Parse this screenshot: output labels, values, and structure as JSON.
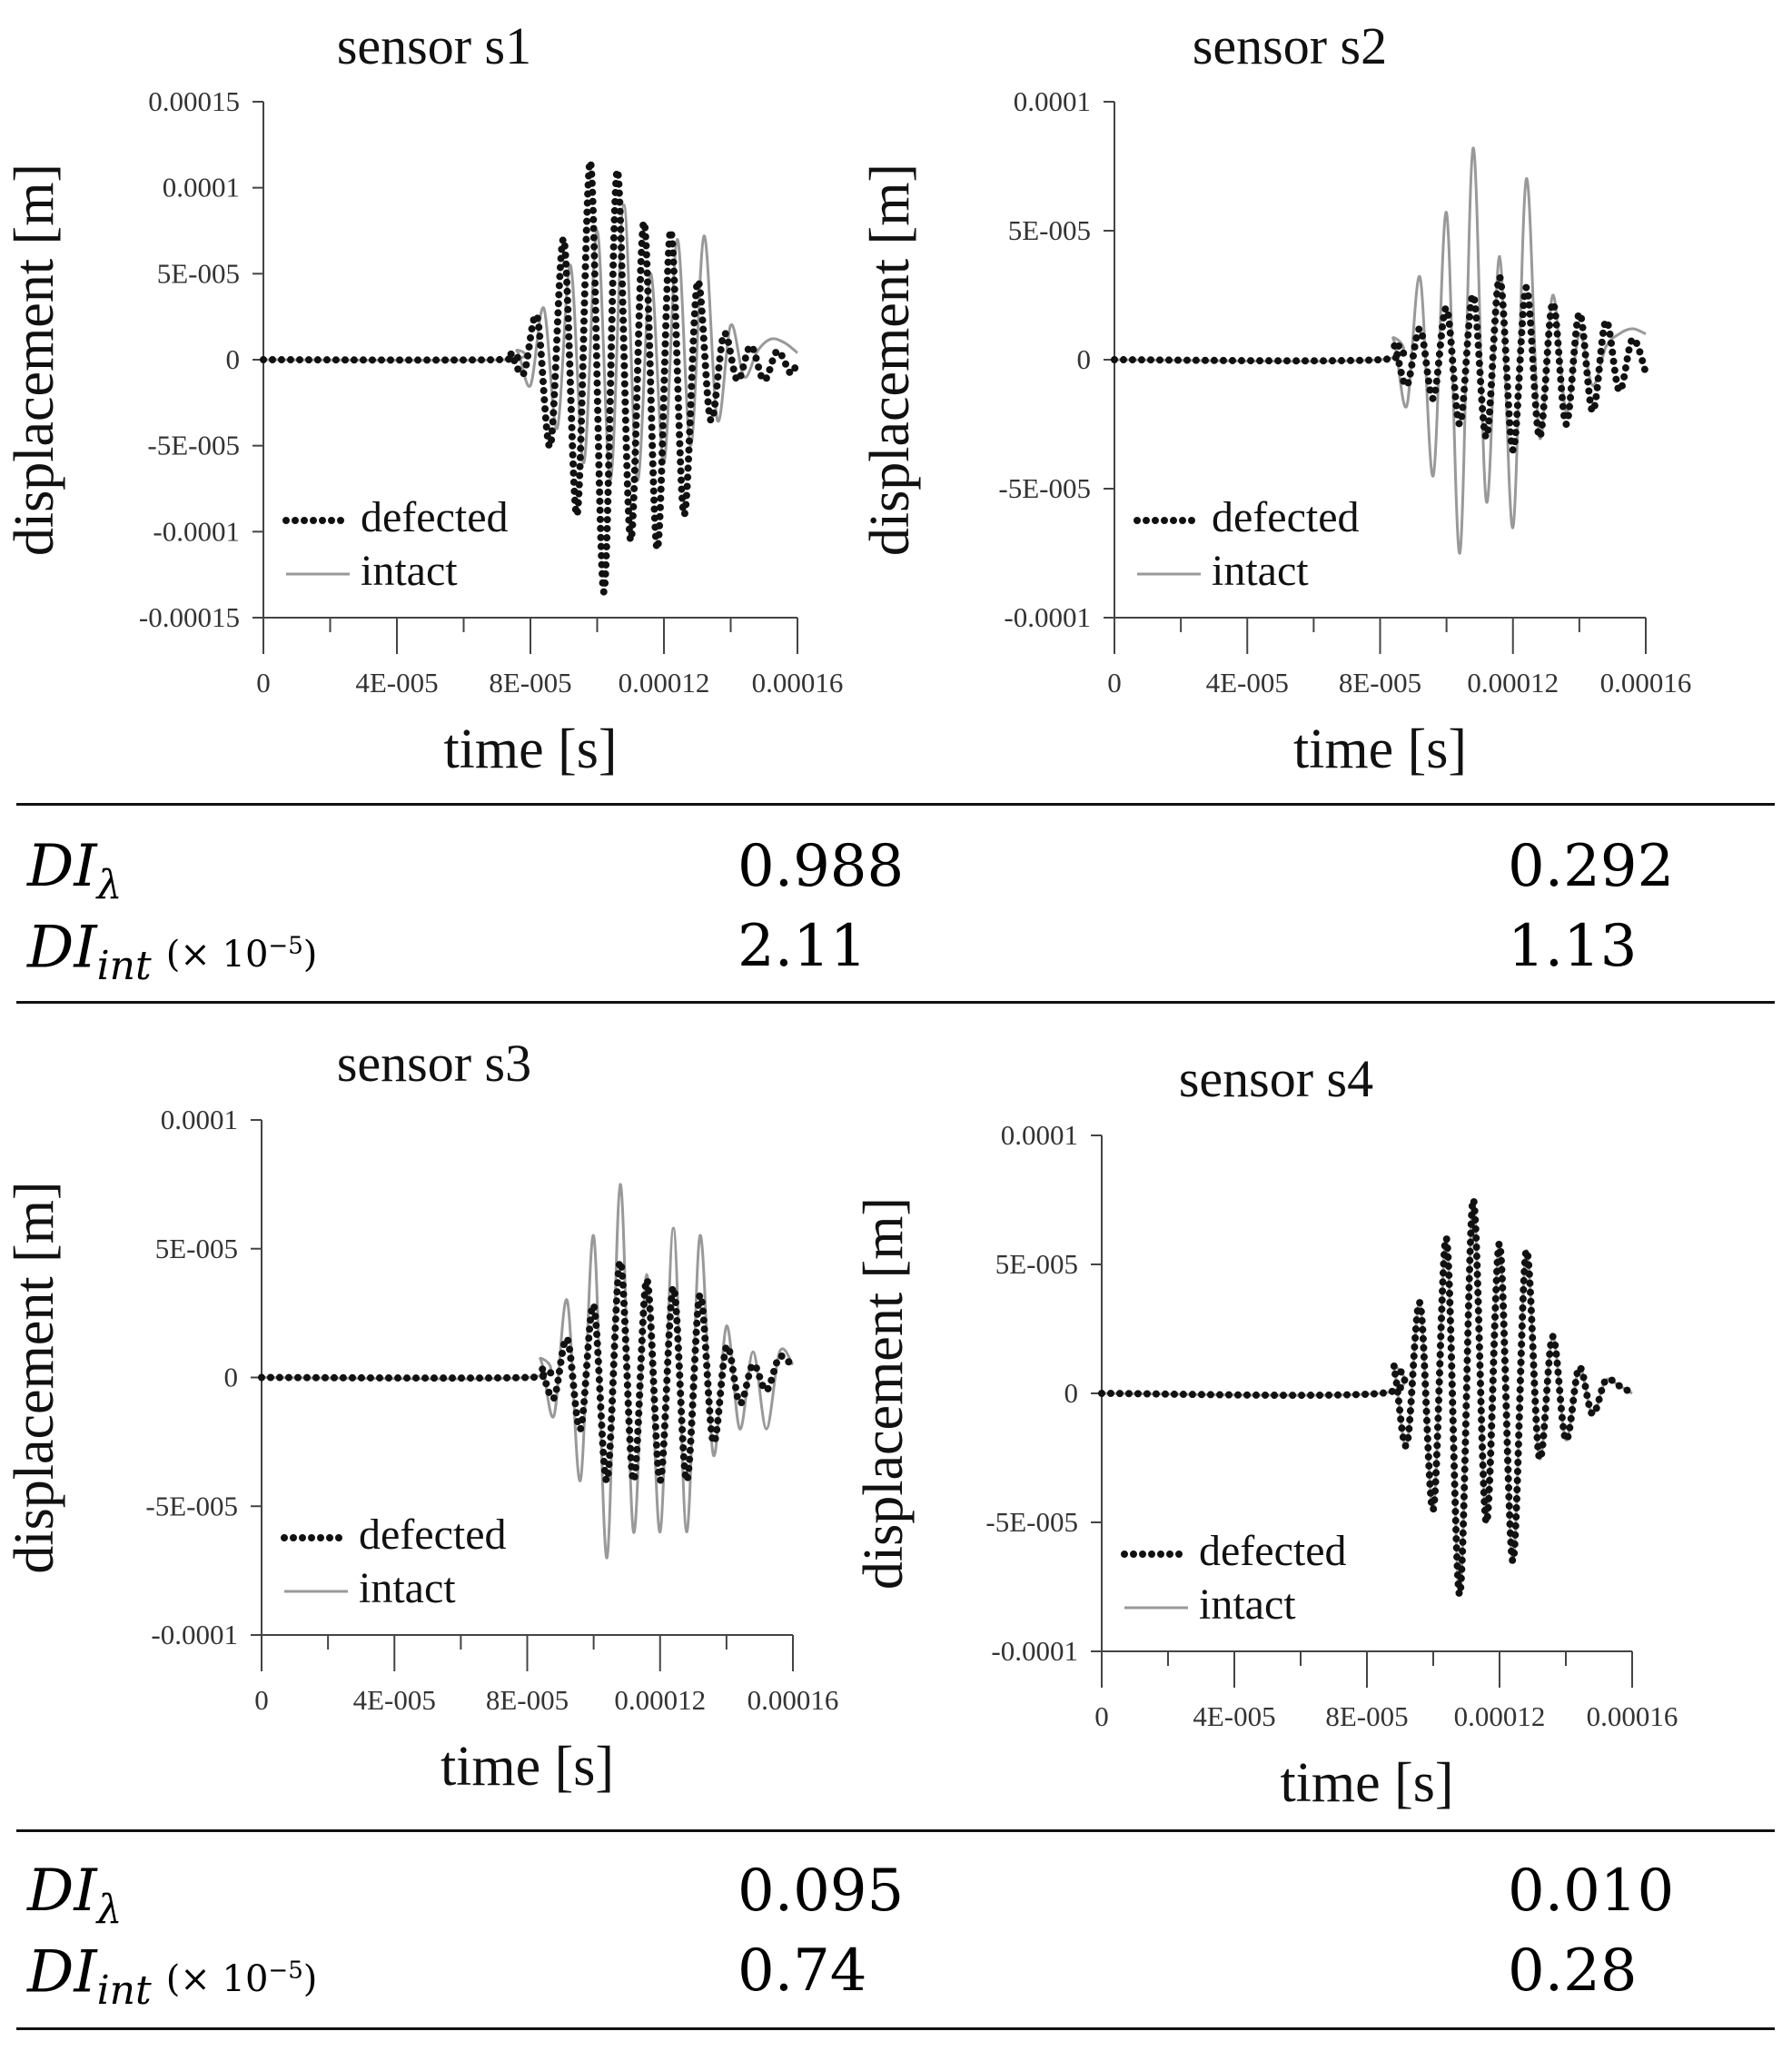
{
  "chart_data": [
    {
      "type": "line",
      "title": "sensor s1",
      "xlabel": "time [s]",
      "ylabel": "displacement [m]",
      "xlim": [
        0,
        0.00016
      ],
      "ylim": [
        -0.00015,
        0.00015
      ],
      "xticks": [
        "0",
        "4E-005",
        "8E-005",
        "0.00012",
        "0.00016"
      ],
      "yticks": [
        "0.00015",
        "0.0001",
        "5E-005",
        "0",
        "-5E-005",
        "-0.0001",
        "-0.00015"
      ],
      "legend": [
        "defected",
        "intact"
      ],
      "legend_position": "bottom-left",
      "series": [
        {
          "name": "defected",
          "style": "dotted",
          "color": "#111111",
          "x": [
            0,
            7e-05,
            7.4e-05,
            7.8e-05,
            8.2e-05,
            8.6e-05,
            9e-05,
            9.4e-05,
            9.8e-05,
            0.000102,
            0.000106,
            0.00011,
            0.000114,
            0.000118,
            0.000122,
            0.000126,
            0.00013,
            0.000134,
            0.000138,
            0.000142,
            0.000146,
            0.00015,
            0.000154,
            0.000158,
            0.00016
          ],
          "y": [
            0,
            0,
            3e-06,
            -8e-06,
            2.5e-05,
            -5e-05,
            7e-05,
            -9e-05,
            0.000115,
            -0.000135,
            0.00011,
            -0.000105,
            8e-05,
            -0.00011,
            7.5e-05,
            -9e-05,
            4.5e-05,
            -3.5e-05,
            1.5e-05,
            -1.2e-05,
            8e-06,
            -1.2e-05,
            5e-06,
            -8e-06,
            0
          ]
        },
        {
          "name": "intact",
          "style": "solid",
          "color": "#999999",
          "x": [
            0,
            7.2e-05,
            7.6e-05,
            8e-05,
            8.4e-05,
            8.8e-05,
            9.2e-05,
            9.6e-05,
            0.0001,
            0.000104,
            0.000108,
            0.000112,
            0.000116,
            0.00012,
            0.000124,
            0.000128,
            0.000132,
            0.000136,
            0.00014,
            0.000144,
            0.000148,
            0.000152,
            0.000156,
            0.00016
          ],
          "y": [
            0,
            0,
            5e-06,
            -1.5e-05,
            3e-05,
            -4e-05,
            5.5e-05,
            -6e-05,
            7.5e-05,
            -7e-05,
            9e-05,
            -7e-05,
            5e-05,
            -6e-05,
            7e-05,
            -5e-05,
            7.2e-05,
            -3.5e-05,
            2e-05,
            -1e-05,
            5e-06,
            1.2e-05,
            1e-05,
            4e-06
          ]
        }
      ]
    },
    {
      "type": "line",
      "title": "sensor s2",
      "xlabel": "time [s]",
      "ylabel": "displacement [m]",
      "xlim": [
        0,
        0.00016
      ],
      "ylim": [
        -0.0001,
        0.0001
      ],
      "xticks": [
        "0",
        "4E-005",
        "8E-005",
        "0.00012",
        "0.00016"
      ],
      "yticks": [
        "0.0001",
        "5E-005",
        "0",
        "-5E-005",
        "-0.0001"
      ],
      "legend": [
        "defected",
        "intact"
      ],
      "legend_position": "bottom-left",
      "series": [
        {
          "name": "defected",
          "style": "dotted",
          "color": "#111111",
          "x": [
            0,
            8e-05,
            8.4e-05,
            8.8e-05,
            9.2e-05,
            9.6e-05,
            0.0001,
            0.000104,
            0.000108,
            0.000112,
            0.000116,
            0.00012,
            0.000124,
            0.000128,
            0.000132,
            0.000136,
            0.00014,
            0.000144,
            0.000148,
            0.000152,
            0.000156,
            0.00016
          ],
          "y": [
            0,
            0,
            6e-06,
            -1e-05,
            1.2e-05,
            -1.5e-05,
            2e-05,
            -2.5e-05,
            2.5e-05,
            -3e-05,
            3.2e-05,
            -3.5e-05,
            2.8e-05,
            -3e-05,
            2.2e-05,
            -2.5e-05,
            1.8e-05,
            -2e-05,
            1.5e-05,
            -1.2e-05,
            8e-06,
            -5e-06
          ]
        },
        {
          "name": "intact",
          "style": "solid",
          "color": "#999999",
          "x": [
            0,
            8e-05,
            8.4e-05,
            8.8e-05,
            9.2e-05,
            9.6e-05,
            0.0001,
            0.000104,
            0.000108,
            0.000112,
            0.000116,
            0.00012,
            0.000124,
            0.000128,
            0.000132,
            0.000136,
            0.00014,
            0.000144,
            0.000148,
            0.000152,
            0.000156,
            0.00016
          ],
          "y": [
            0,
            0,
            8e-06,
            -1.8e-05,
            3.2e-05,
            -4.5e-05,
            5.7e-05,
            -7.5e-05,
            8.2e-05,
            -5.5e-05,
            4e-05,
            -6.5e-05,
            7e-05,
            -3e-05,
            2.5e-05,
            -2e-05,
            1e-05,
            -1e-05,
            5e-06,
            1e-05,
            1.2e-05,
            1e-05
          ]
        }
      ]
    },
    {
      "type": "line",
      "title": "sensor s3",
      "xlabel": "time [s]",
      "ylabel": "displacement [m]",
      "xlim": [
        0,
        0.00016
      ],
      "ylim": [
        -0.0001,
        0.0001
      ],
      "xticks": [
        "0",
        "4E-005",
        "8E-005",
        "0.00012",
        "0.00016"
      ],
      "yticks": [
        "0.0001",
        "5E-005",
        "0",
        "-5E-005",
        "-0.0001"
      ],
      "legend": [
        "defected",
        "intact"
      ],
      "legend_position": "bottom-left",
      "series": [
        {
          "name": "defected",
          "style": "dotted",
          "color": "#111111",
          "x": [
            0,
            8e-05,
            8.4e-05,
            8.8e-05,
            9.2e-05,
            9.6e-05,
            0.0001,
            0.000104,
            0.000108,
            0.000112,
            0.000116,
            0.00012,
            0.000124,
            0.000128,
            0.000132,
            0.000136,
            0.00014,
            0.000144,
            0.000148,
            0.000152,
            0.000156,
            0.00016
          ],
          "y": [
            0,
            0,
            3e-06,
            -8e-06,
            1.5e-05,
            -2e-05,
            2.8e-05,
            -4e-05,
            4.5e-05,
            -4e-05,
            3.8e-05,
            -4e-05,
            3.5e-05,
            -4e-05,
            3.2e-05,
            -2.5e-05,
            1.2e-05,
            -1e-05,
            5e-06,
            -5e-06,
            8e-06,
            4e-06
          ]
        },
        {
          "name": "intact",
          "style": "solid",
          "color": "#999999",
          "x": [
            0,
            8e-05,
            8.4e-05,
            8.8e-05,
            9.2e-05,
            9.6e-05,
            0.0001,
            0.000104,
            0.000108,
            0.000112,
            0.000116,
            0.00012,
            0.000124,
            0.000128,
            0.000132,
            0.000136,
            0.00014,
            0.000144,
            0.000148,
            0.000152,
            0.000156,
            0.00016
          ],
          "y": [
            0,
            0,
            7e-06,
            -1.5e-05,
            3e-05,
            -4e-05,
            5.5e-05,
            -7e-05,
            7.5e-05,
            -6e-05,
            4e-05,
            -6e-05,
            5.8e-05,
            -6e-05,
            5.5e-05,
            -3e-05,
            2e-05,
            -2e-05,
            1e-05,
            -2e-05,
            1e-05,
            5e-06
          ]
        }
      ]
    },
    {
      "type": "line",
      "title": "sensor s4",
      "xlabel": "time [s]",
      "ylabel": "displacement [m]",
      "xlim": [
        0,
        0.00016
      ],
      "ylim": [
        -0.0001,
        0.0001
      ],
      "xticks": [
        "0",
        "4E-005",
        "8E-005",
        "0.00012",
        "0.00016"
      ],
      "yticks": [
        "0.0001",
        "5E-005",
        "0",
        "-5E-005",
        "-0.0001"
      ],
      "legend": [
        "defected",
        "intact"
      ],
      "legend_position": "bottom-left",
      "series": [
        {
          "name": "defected",
          "style": "dotted",
          "color": "#111111",
          "x": [
            0,
            8.4e-05,
            8.8e-05,
            9.2e-05,
            9.6e-05,
            0.0001,
            0.000104,
            0.000108,
            0.000112,
            0.000116,
            0.00012,
            0.000124,
            0.000128,
            0.000132,
            0.000136,
            0.00014,
            0.000144,
            0.000148,
            0.000152,
            0.000156,
            0.00016
          ],
          "y": [
            0,
            0,
            1e-05,
            -2e-05,
            3.5e-05,
            -4.5e-05,
            6e-05,
            -7.8e-05,
            7.5e-05,
            -5e-05,
            5.8e-05,
            -6.5e-05,
            5.5e-05,
            -2.5e-05,
            2.2e-05,
            -1.8e-05,
            1e-05,
            -8e-06,
            5e-06,
            3e-06,
            0
          ]
        },
        {
          "name": "intact",
          "style": "solid",
          "color": "#999999",
          "x": [
            0,
            8.4e-05,
            8.8e-05,
            9.2e-05,
            9.6e-05,
            0.0001,
            0.000104,
            0.000108,
            0.000112,
            0.000116,
            0.00012,
            0.000124,
            0.000128,
            0.000132,
            0.000136,
            0.00014,
            0.000144,
            0.000148,
            0.000152,
            0.000156,
            0.00016
          ],
          "y": [
            0,
            0,
            1e-05,
            -2e-05,
            3.5e-05,
            -4.5e-05,
            6e-05,
            -7.8e-05,
            7.5e-05,
            -5e-05,
            5.8e-05,
            -6.5e-05,
            5.5e-05,
            -2.5e-05,
            2.2e-05,
            -1.8e-05,
            1e-05,
            -8e-06,
            5e-06,
            3e-06,
            0
          ]
        }
      ]
    }
  ],
  "table": {
    "row1": {
      "di_lambda_label": "DIλ",
      "di_int_label": "DIint",
      "multiplier": "(× 10⁻⁵)",
      "s1_lambda": "0.988",
      "s2_lambda": "0.292",
      "s1_int": "2.11",
      "s2_int": "1.13"
    },
    "row2": {
      "di_lambda_label": "DIλ",
      "di_int_label": "DIint",
      "multiplier": "(× 10⁻⁵)",
      "s3_lambda": "0.095",
      "s4_lambda": "0.010",
      "s3_int": "0.74",
      "s4_int": "0.28"
    }
  }
}
